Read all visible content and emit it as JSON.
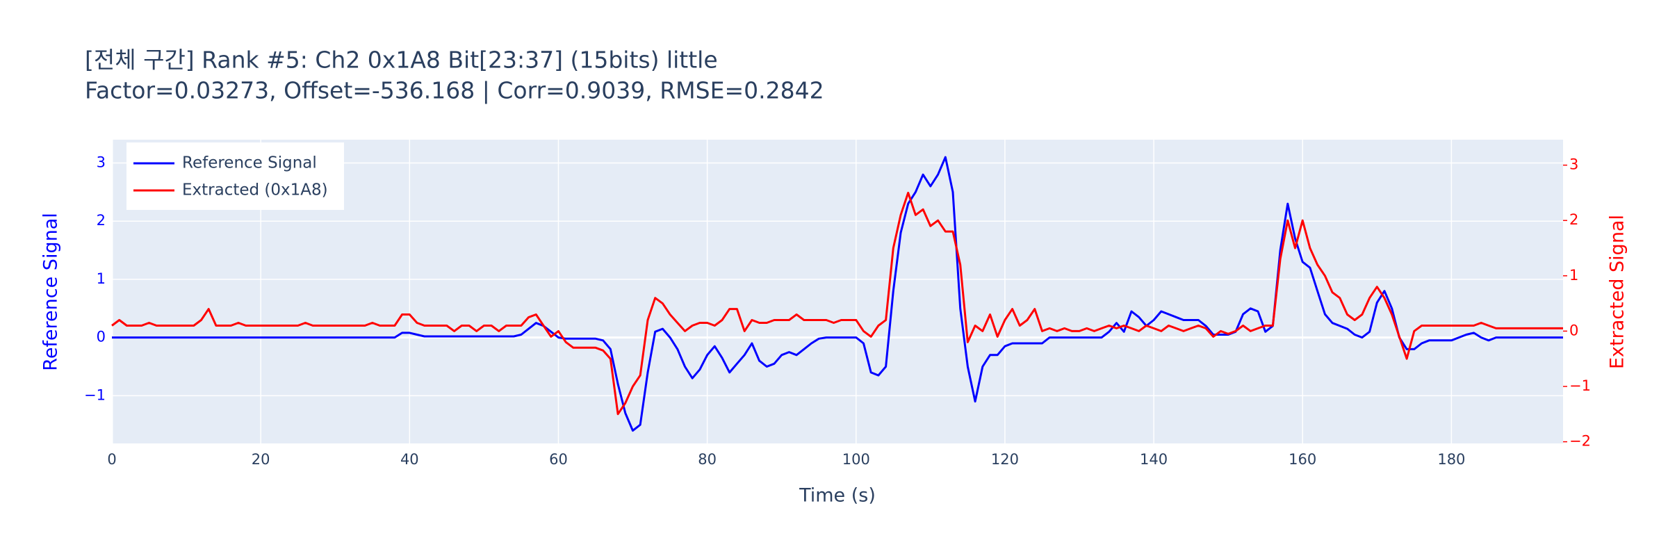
{
  "chart_data": {
    "type": "line",
    "title_lines": [
      "[전체 구간] Rank #5: Ch2 0x1A8 Bit[23:37] (15bits) little",
      "Factor=0.03273, Offset=-536.168 | Corr=0.9039, RMSE=0.2842"
    ],
    "x_label": "Time (s)",
    "y_label": "Reference Signal",
    "y2_label": "Extracted Signal",
    "xlim": [
      0,
      195
    ],
    "ylim": [
      -1.82,
      3.4
    ],
    "y2lim": [
      -2.03,
      3.46
    ],
    "xticks": [
      0,
      20,
      40,
      60,
      80,
      100,
      120,
      140,
      160,
      180
    ],
    "yticks": [
      {
        "value": -1,
        "label": "−1"
      },
      0,
      1,
      2,
      3
    ],
    "y2ticks": [
      {
        "value": -2,
        "label": "−2"
      },
      {
        "value": -1,
        "label": "−1"
      },
      0,
      1,
      2,
      3
    ],
    "grid": true,
    "legend": "top-left",
    "x": [
      0,
      1,
      2,
      3,
      4,
      5,
      6,
      7,
      8,
      9,
      10,
      11,
      12,
      13,
      14,
      15,
      16,
      17,
      18,
      19,
      20,
      21,
      22,
      23,
      24,
      25,
      26,
      27,
      28,
      29,
      30,
      31,
      32,
      33,
      34,
      35,
      36,
      37,
      38,
      39,
      40,
      41,
      42,
      43,
      44,
      45,
      46,
      47,
      48,
      49,
      50,
      51,
      52,
      53,
      54,
      55,
      56,
      57,
      58,
      59,
      60,
      61,
      62,
      63,
      64,
      65,
      66,
      67,
      68,
      69,
      70,
      71,
      72,
      73,
      74,
      75,
      76,
      77,
      78,
      79,
      80,
      81,
      82,
      83,
      84,
      85,
      86,
      87,
      88,
      89,
      90,
      91,
      92,
      93,
      94,
      95,
      96,
      97,
      98,
      99,
      100,
      101,
      102,
      103,
      104,
      105,
      106,
      107,
      108,
      109,
      110,
      111,
      112,
      113,
      114,
      115,
      116,
      117,
      118,
      119,
      120,
      121,
      122,
      123,
      124,
      125,
      126,
      127,
      128,
      129,
      130,
      131,
      132,
      133,
      134,
      135,
      136,
      137,
      138,
      139,
      140,
      141,
      142,
      143,
      144,
      145,
      146,
      147,
      148,
      149,
      150,
      151,
      152,
      153,
      154,
      155,
      156,
      157,
      158,
      159,
      160,
      161,
      162,
      163,
      164,
      165,
      166,
      167,
      168,
      169,
      170,
      171,
      172,
      173,
      174,
      175,
      176,
      177,
      178,
      179,
      180,
      181,
      182,
      183,
      184,
      185,
      186,
      187,
      188,
      189,
      190,
      191,
      192,
      193,
      194,
      195
    ],
    "series": [
      {
        "name": "Reference Signal",
        "color": "#0000ff",
        "axis": "y",
        "values": [
          0,
          0,
          0,
          0,
          0,
          0,
          0,
          0,
          0,
          0,
          0,
          0,
          0,
          0,
          0,
          0,
          0,
          0,
          0,
          0,
          0,
          0,
          0,
          0,
          0,
          0,
          0,
          0,
          0,
          0,
          0,
          0,
          0,
          0,
          0,
          0,
          0,
          0,
          0,
          0.08,
          0.08,
          0.05,
          0.02,
          0.02,
          0.02,
          0.02,
          0.02,
          0.02,
          0.02,
          0.02,
          0.02,
          0.02,
          0.02,
          0.02,
          0.02,
          0.05,
          0.15,
          0.25,
          0.2,
          0.1,
          0,
          -0.02,
          -0.02,
          -0.02,
          -0.02,
          -0.02,
          -0.05,
          -0.2,
          -0.8,
          -1.3,
          -1.6,
          -1.5,
          -0.6,
          0.1,
          0.15,
          0,
          -0.2,
          -0.5,
          -0.7,
          -0.55,
          -0.3,
          -0.15,
          -0.35,
          -0.6,
          -0.45,
          -0.3,
          -0.1,
          -0.4,
          -0.5,
          -0.45,
          -0.3,
          -0.25,
          -0.3,
          -0.2,
          -0.1,
          -0.02,
          0,
          0,
          0,
          0,
          0,
          -0.1,
          -0.6,
          -0.65,
          -0.5,
          0.8,
          1.8,
          2.3,
          2.5,
          2.8,
          2.6,
          2.8,
          3.1,
          2.5,
          0.5,
          -0.5,
          -1.1,
          -0.5,
          -0.3,
          -0.3,
          -0.15,
          -0.1,
          -0.1,
          -0.1,
          -0.1,
          -0.1,
          0,
          0,
          0,
          0,
          0,
          0,
          0,
          0,
          0.1,
          0.25,
          0.1,
          0.45,
          0.35,
          0.2,
          0.3,
          0.45,
          0.4,
          0.35,
          0.3,
          0.3,
          0.3,
          0.2,
          0.05,
          0.05,
          0.05,
          0.1,
          0.4,
          0.5,
          0.45,
          0.1,
          0.2,
          1.5,
          2.3,
          1.7,
          1.3,
          1.2,
          0.8,
          0.4,
          0.25,
          0.2,
          0.15,
          0.05,
          0,
          0.1,
          0.6,
          0.8,
          0.5,
          0,
          -0.2,
          -0.2,
          -0.1,
          -0.05,
          -0.05,
          -0.05,
          -0.05,
          0,
          0.05,
          0.08,
          0,
          -0.05,
          0,
          0,
          0,
          0,
          0,
          0,
          0,
          0,
          0,
          0
        ]
      },
      {
        "name": "Extracted (0x1A8)",
        "color": "#ff0000",
        "axis": "y2",
        "values": [
          0.1,
          0.2,
          0.1,
          0.1,
          0.1,
          0.15,
          0.1,
          0.1,
          0.1,
          0.1,
          0.1,
          0.1,
          0.2,
          0.4,
          0.1,
          0.1,
          0.1,
          0.15,
          0.1,
          0.1,
          0.1,
          0.1,
          0.1,
          0.1,
          0.1,
          0.1,
          0.15,
          0.1,
          0.1,
          0.1,
          0.1,
          0.1,
          0.1,
          0.1,
          0.1,
          0.15,
          0.1,
          0.1,
          0.1,
          0.3,
          0.3,
          0.15,
          0.1,
          0.1,
          0.1,
          0.1,
          0,
          0.1,
          0.1,
          0,
          0.1,
          0.1,
          0,
          0.1,
          0.1,
          0.1,
          0.25,
          0.3,
          0.1,
          -0.1,
          0,
          -0.2,
          -0.3,
          -0.3,
          -0.3,
          -0.3,
          -0.35,
          -0.5,
          -1.5,
          -1.3,
          -1.0,
          -0.8,
          0.2,
          0.6,
          0.5,
          0.3,
          0.15,
          0,
          0.1,
          0.15,
          0.15,
          0.1,
          0.2,
          0.4,
          0.4,
          0,
          0.2,
          0.15,
          0.15,
          0.2,
          0.2,
          0.2,
          0.3,
          0.2,
          0.2,
          0.2,
          0.2,
          0.15,
          0.2,
          0.2,
          0.2,
          0,
          -0.1,
          0.1,
          0.2,
          1.5,
          2.1,
          2.5,
          2.1,
          2.2,
          1.9,
          2.0,
          1.8,
          1.8,
          1.2,
          -0.2,
          0.1,
          0,
          0.3,
          -0.1,
          0.2,
          0.4,
          0.1,
          0.2,
          0.4,
          0,
          0.05,
          0,
          0.05,
          0,
          0,
          0.05,
          0,
          0.05,
          0.1,
          0.05,
          0.1,
          0.05,
          0,
          0.1,
          0.05,
          0,
          0.1,
          0.05,
          0,
          0.05,
          0.1,
          0.05,
          -0.1,
          0,
          -0.05,
          0,
          0.1,
          0,
          0.05,
          0.1,
          0.1,
          1.3,
          2.0,
          1.5,
          2.0,
          1.5,
          1.2,
          1.0,
          0.7,
          0.6,
          0.3,
          0.2,
          0.3,
          0.6,
          0.8,
          0.6,
          0.3,
          -0.1,
          -0.5,
          0,
          0.1,
          0.1,
          0.1,
          0.1,
          0.1,
          0.1,
          0.1,
          0.1,
          0.15,
          0.1,
          0.05,
          0.05,
          0.05,
          0.05,
          0.05,
          0.05,
          0.05,
          0.05,
          0.05,
          0.05
        ]
      }
    ]
  }
}
